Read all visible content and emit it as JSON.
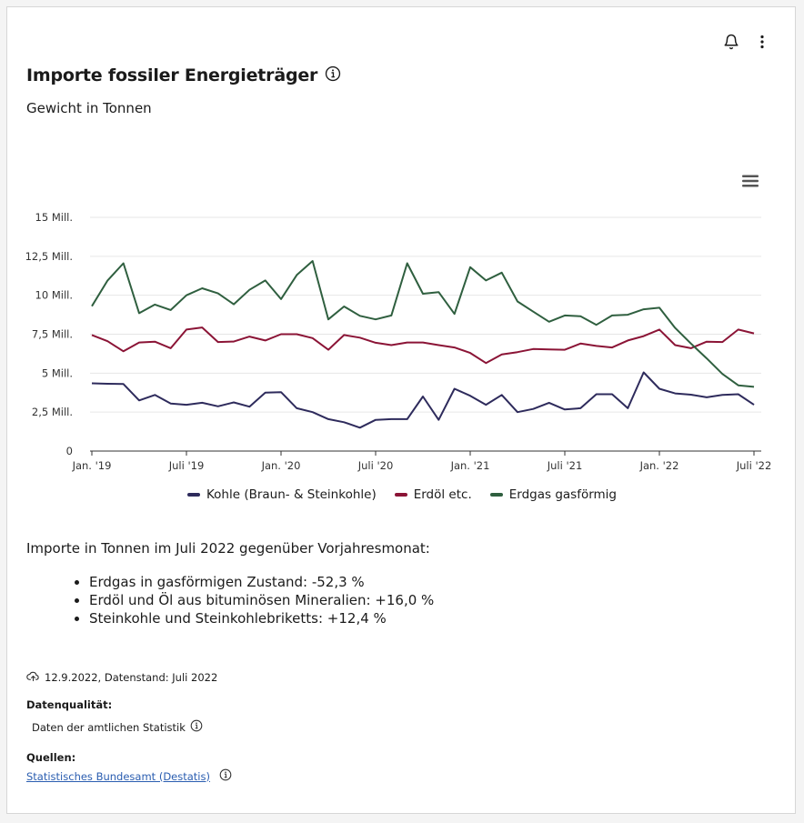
{
  "header": {
    "title": "Importe fossiler Energieträger",
    "subtitle": "Gewicht in Tonnen"
  },
  "chart_data": {
    "type": "line",
    "y_ticks": [
      "0",
      "2,5 Mill.",
      "5 Mill.",
      "7,5 Mill.",
      "10 Mill.",
      "12,5 Mill.",
      "15 Mill."
    ],
    "y_tick_values": [
      0,
      2.5,
      5,
      7.5,
      10,
      12.5,
      15
    ],
    "ylim": [
      0,
      15
    ],
    "x_tick_labels": [
      "Jan. '19",
      "Juli '19",
      "Jan. '20",
      "Juli '20",
      "Jan. '21",
      "Juli '21",
      "Jan. '22",
      "Juli '22"
    ],
    "x_tick_index": [
      0,
      6,
      12,
      18,
      24,
      30,
      36,
      42
    ],
    "grid": true,
    "legend_position": "bottom",
    "series": [
      {
        "name": "Kohle (Braun- & Steinkohle)",
        "color": "#2e2b5c",
        "values": [
          4.35,
          4.32,
          4.3,
          3.25,
          3.6,
          3.05,
          2.97,
          3.1,
          2.87,
          3.12,
          2.85,
          3.75,
          3.78,
          2.75,
          2.5,
          2.05,
          1.85,
          1.5,
          2.0,
          2.05,
          2.05,
          3.5,
          2.0,
          4.0,
          3.55,
          2.97,
          3.6,
          2.5,
          2.7,
          3.1,
          2.67,
          2.75,
          3.65,
          3.65,
          2.75,
          5.05,
          4.0,
          3.7,
          3.62,
          3.45,
          3.6,
          3.65,
          2.97
        ]
      },
      {
        "name": "Erdöl etc.",
        "color": "#8b1436",
        "values": [
          7.45,
          7.05,
          6.4,
          6.97,
          7.02,
          6.6,
          7.8,
          7.93,
          7.0,
          7.03,
          7.35,
          7.1,
          7.5,
          7.5,
          7.25,
          6.5,
          7.45,
          7.28,
          6.95,
          6.8,
          6.97,
          6.97,
          6.8,
          6.65,
          6.3,
          5.65,
          6.2,
          6.35,
          6.55,
          6.52,
          6.5,
          6.9,
          6.75,
          6.65,
          7.1,
          7.38,
          7.8,
          6.8,
          6.6,
          7.02,
          7.0,
          7.8,
          7.55
        ]
      },
      {
        "name": "Erdgas gasförmig",
        "color": "#2f5f3f",
        "values": [
          9.3,
          10.95,
          12.05,
          8.85,
          9.4,
          9.05,
          10.0,
          10.45,
          10.12,
          9.42,
          10.35,
          10.95,
          9.75,
          11.3,
          12.2,
          8.45,
          9.28,
          8.68,
          8.45,
          8.7,
          12.05,
          10.1,
          10.2,
          8.8,
          11.8,
          10.95,
          11.45,
          9.6,
          8.95,
          8.3,
          8.7,
          8.65,
          8.1,
          8.7,
          8.75,
          9.1,
          9.2,
          7.9,
          6.9,
          5.95,
          4.95,
          4.22,
          4.12
        ]
      }
    ]
  },
  "description": {
    "heading": "Importe in Tonnen im Juli 2022 gegenüber Vorjahresmonat:",
    "items": [
      "Erdgas in gasförmigen Zustand: -52,3 %",
      "Erdöl und Öl aus bituminösen Mineralien: +16,0 %",
      "Steinkohle und Steinkohlebriketts: +12,4 %"
    ]
  },
  "meta": {
    "upload_date": "12.9.2022, Datenstand: Juli 2022",
    "quality_label": "Datenqualität:",
    "quality_value": "Daten der amtlichen Statistik",
    "sources_label": "Quellen:",
    "source_link": "Statistisches Bundesamt (Destatis)"
  },
  "icons": {
    "bell": "bell-icon",
    "more": "more-vertical-icon",
    "info": "info-icon",
    "menu": "hamburger-menu-icon",
    "upload": "cloud-upload-icon"
  }
}
